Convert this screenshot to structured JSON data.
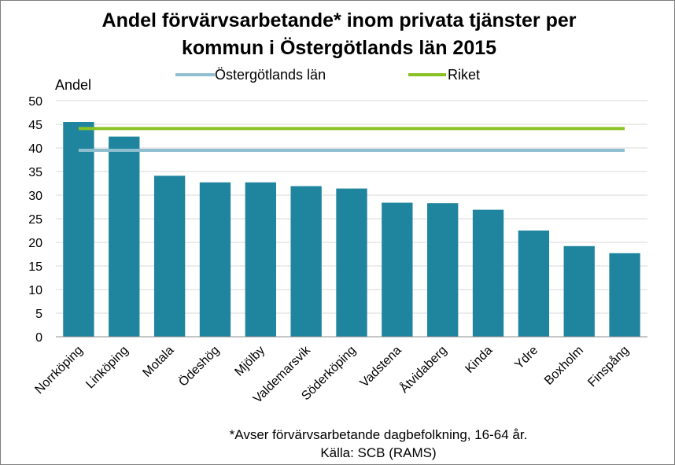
{
  "chart_data": {
    "type": "bar",
    "title_line1": "Andel förvärvsarbetande* inom privata tjänster per",
    "title_line2": "kommun i Östergötlands län 2015",
    "ylabel": "Andel",
    "ylim": [
      0,
      50
    ],
    "yticks": [
      0,
      5,
      10,
      15,
      20,
      25,
      30,
      35,
      40,
      45,
      50
    ],
    "grid": true,
    "categories": [
      "Norrköping",
      "Linköping",
      "Motala",
      "Ödeshög",
      "Mjölby",
      "Valdemarsvik",
      "Söderköping",
      "Vadstena",
      "Åtvidaberg",
      "Kinda",
      "Ydre",
      "Boxholm",
      "Finspång"
    ],
    "values": [
      45.5,
      42.4,
      34.1,
      32.7,
      32.7,
      31.9,
      31.4,
      28.4,
      28.3,
      26.9,
      22.5,
      19.2,
      17.7
    ],
    "bar_color": "#1f849e",
    "reference_lines": [
      {
        "name": "Östergötlands län",
        "value": 39.5,
        "color": "#8fbfcf"
      },
      {
        "name": "Riket",
        "value": 44.1,
        "color": "#8ac125"
      }
    ],
    "legend_position": "top"
  },
  "footnote": {
    "line1": "*Avser förvärvsarbetande dagbefolkning,  16-64 år.",
    "line2": "Källa: SCB (RAMS)"
  }
}
